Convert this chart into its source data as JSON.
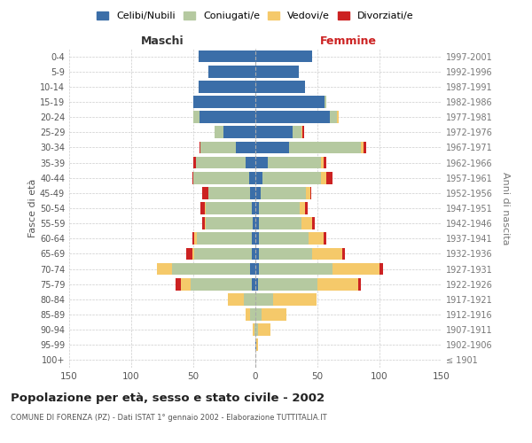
{
  "age_groups": [
    "100+",
    "95-99",
    "90-94",
    "85-89",
    "80-84",
    "75-79",
    "70-74",
    "65-69",
    "60-64",
    "55-59",
    "50-54",
    "45-49",
    "40-44",
    "35-39",
    "30-34",
    "25-29",
    "20-24",
    "15-19",
    "10-14",
    "5-9",
    "0-4"
  ],
  "birth_years": [
    "≤ 1901",
    "1902-1906",
    "1907-1911",
    "1912-1916",
    "1917-1921",
    "1922-1926",
    "1927-1931",
    "1932-1936",
    "1937-1941",
    "1942-1946",
    "1947-1951",
    "1952-1956",
    "1957-1961",
    "1962-1966",
    "1967-1971",
    "1972-1976",
    "1977-1981",
    "1982-1986",
    "1987-1991",
    "1992-1996",
    "1997-2001"
  ],
  "males": {
    "celibi": [
      0,
      0,
      0,
      0,
      0,
      3,
      4,
      3,
      3,
      2,
      3,
      4,
      5,
      8,
      16,
      26,
      45,
      50,
      46,
      38,
      46
    ],
    "coniugati": [
      0,
      0,
      1,
      4,
      9,
      49,
      63,
      46,
      44,
      38,
      37,
      34,
      45,
      40,
      28,
      7,
      5,
      0,
      0,
      0,
      0
    ],
    "vedovi": [
      0,
      0,
      1,
      4,
      13,
      8,
      12,
      2,
      2,
      1,
      1,
      0,
      0,
      0,
      0,
      0,
      0,
      0,
      0,
      0,
      0
    ],
    "divorziati": [
      0,
      0,
      0,
      0,
      0,
      4,
      0,
      5,
      2,
      2,
      3,
      5,
      1,
      2,
      1,
      0,
      0,
      0,
      0,
      0,
      0
    ]
  },
  "females": {
    "nubili": [
      0,
      1,
      0,
      0,
      0,
      2,
      3,
      3,
      3,
      3,
      3,
      4,
      6,
      10,
      27,
      30,
      60,
      56,
      40,
      35,
      46
    ],
    "coniugate": [
      0,
      0,
      2,
      5,
      14,
      48,
      59,
      43,
      40,
      34,
      33,
      37,
      47,
      43,
      58,
      7,
      6,
      1,
      0,
      0,
      0
    ],
    "vedove": [
      0,
      1,
      10,
      20,
      35,
      33,
      38,
      24,
      12,
      9,
      4,
      3,
      4,
      2,
      2,
      1,
      1,
      0,
      0,
      0,
      0
    ],
    "divorziate": [
      0,
      0,
      0,
      0,
      0,
      2,
      3,
      2,
      2,
      2,
      2,
      1,
      5,
      2,
      2,
      1,
      0,
      0,
      0,
      0,
      0
    ]
  },
  "colors": {
    "celibi": "#3B6EA8",
    "coniugati": "#B5C9A0",
    "vedovi": "#F5C96A",
    "divorziati": "#CC2222"
  },
  "xlim": 150,
  "title": "Popolazione per età, sesso e stato civile - 2002",
  "subtitle": "COMUNE DI FORENZA (PZ) - Dati ISTAT 1° gennaio 2002 - Elaborazione TUTTITALIA.IT",
  "ylabel_left": "Fasce di età",
  "ylabel_right": "Anni di nascita",
  "xlabel_left": "Maschi",
  "xlabel_right": "Femmine",
  "legend_labels": [
    "Celibi/Nubili",
    "Coniugati/e",
    "Vedovi/e",
    "Divorziati/e"
  ],
  "bg_color": "#ffffff",
  "grid_color": "#cccccc"
}
